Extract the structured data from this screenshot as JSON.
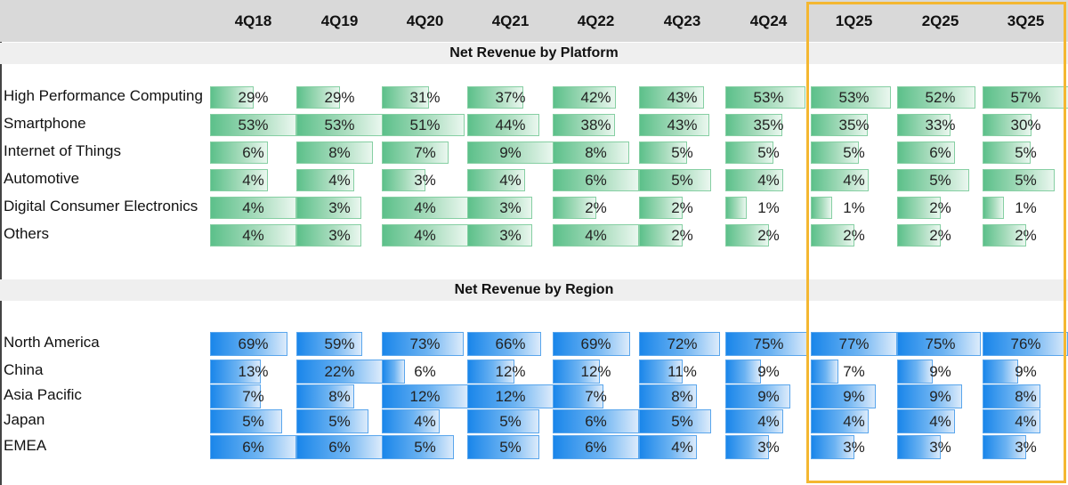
{
  "columns": [
    "4Q18",
    "4Q19",
    "4Q20",
    "4Q21",
    "4Q22",
    "4Q23",
    "4Q24",
    "1Q25",
    "2Q25",
    "3Q25"
  ],
  "highlighted_columns": [
    "1Q25",
    "2Q25",
    "3Q25"
  ],
  "colors": {
    "platform_bar": "#5cc08a",
    "region_bar": "#1a86ea",
    "highlight_border": "#f4b731",
    "header_band": "#d9d9d9",
    "section_band": "#efefef"
  },
  "chart_data": {
    "type": "table",
    "title": "",
    "categories": [
      "4Q18",
      "4Q19",
      "4Q20",
      "4Q21",
      "4Q22",
      "4Q23",
      "4Q24",
      "1Q25",
      "2Q25",
      "3Q25"
    ],
    "sections": [
      {
        "title": "Net Revenue by Platform",
        "color": "green",
        "series": [
          {
            "name": "High Performance Computing",
            "values": [
              29,
              29,
              31,
              37,
              42,
              43,
              53,
              53,
              52,
              57
            ]
          },
          {
            "name": "Smartphone",
            "values": [
              53,
              53,
              51,
              44,
              38,
              43,
              35,
              35,
              33,
              30
            ]
          },
          {
            "name": "Internet of Things",
            "values": [
              6,
              8,
              7,
              9,
              8,
              5,
              5,
              5,
              6,
              5
            ]
          },
          {
            "name": "Automotive",
            "values": [
              4,
              4,
              3,
              4,
              6,
              5,
              4,
              4,
              5,
              5
            ]
          },
          {
            "name": "Digital Consumer Electronics",
            "values": [
              4,
              3,
              4,
              3,
              2,
              2,
              1,
              1,
              2,
              1
            ]
          },
          {
            "name": "Others",
            "values": [
              4,
              3,
              4,
              3,
              4,
              2,
              2,
              2,
              2,
              2
            ]
          }
        ]
      },
      {
        "title": "Net Revenue by Region",
        "color": "blue",
        "series": [
          {
            "name": "North America",
            "values": [
              69,
              59,
              73,
              66,
              69,
              72,
              75,
              77,
              75,
              76
            ]
          },
          {
            "name": "China",
            "values": [
              13,
              22,
              6,
              12,
              12,
              11,
              9,
              7,
              9,
              9
            ]
          },
          {
            "name": "Asia Pacific",
            "values": [
              7,
              8,
              12,
              12,
              7,
              8,
              9,
              9,
              9,
              8
            ]
          },
          {
            "name": "Japan",
            "values": [
              5,
              5,
              4,
              5,
              6,
              5,
              4,
              4,
              4,
              4
            ]
          },
          {
            "name": "EMEA",
            "values": [
              6,
              6,
              5,
              5,
              6,
              4,
              3,
              3,
              3,
              3
            ]
          }
        ]
      }
    ],
    "unit": "%"
  }
}
